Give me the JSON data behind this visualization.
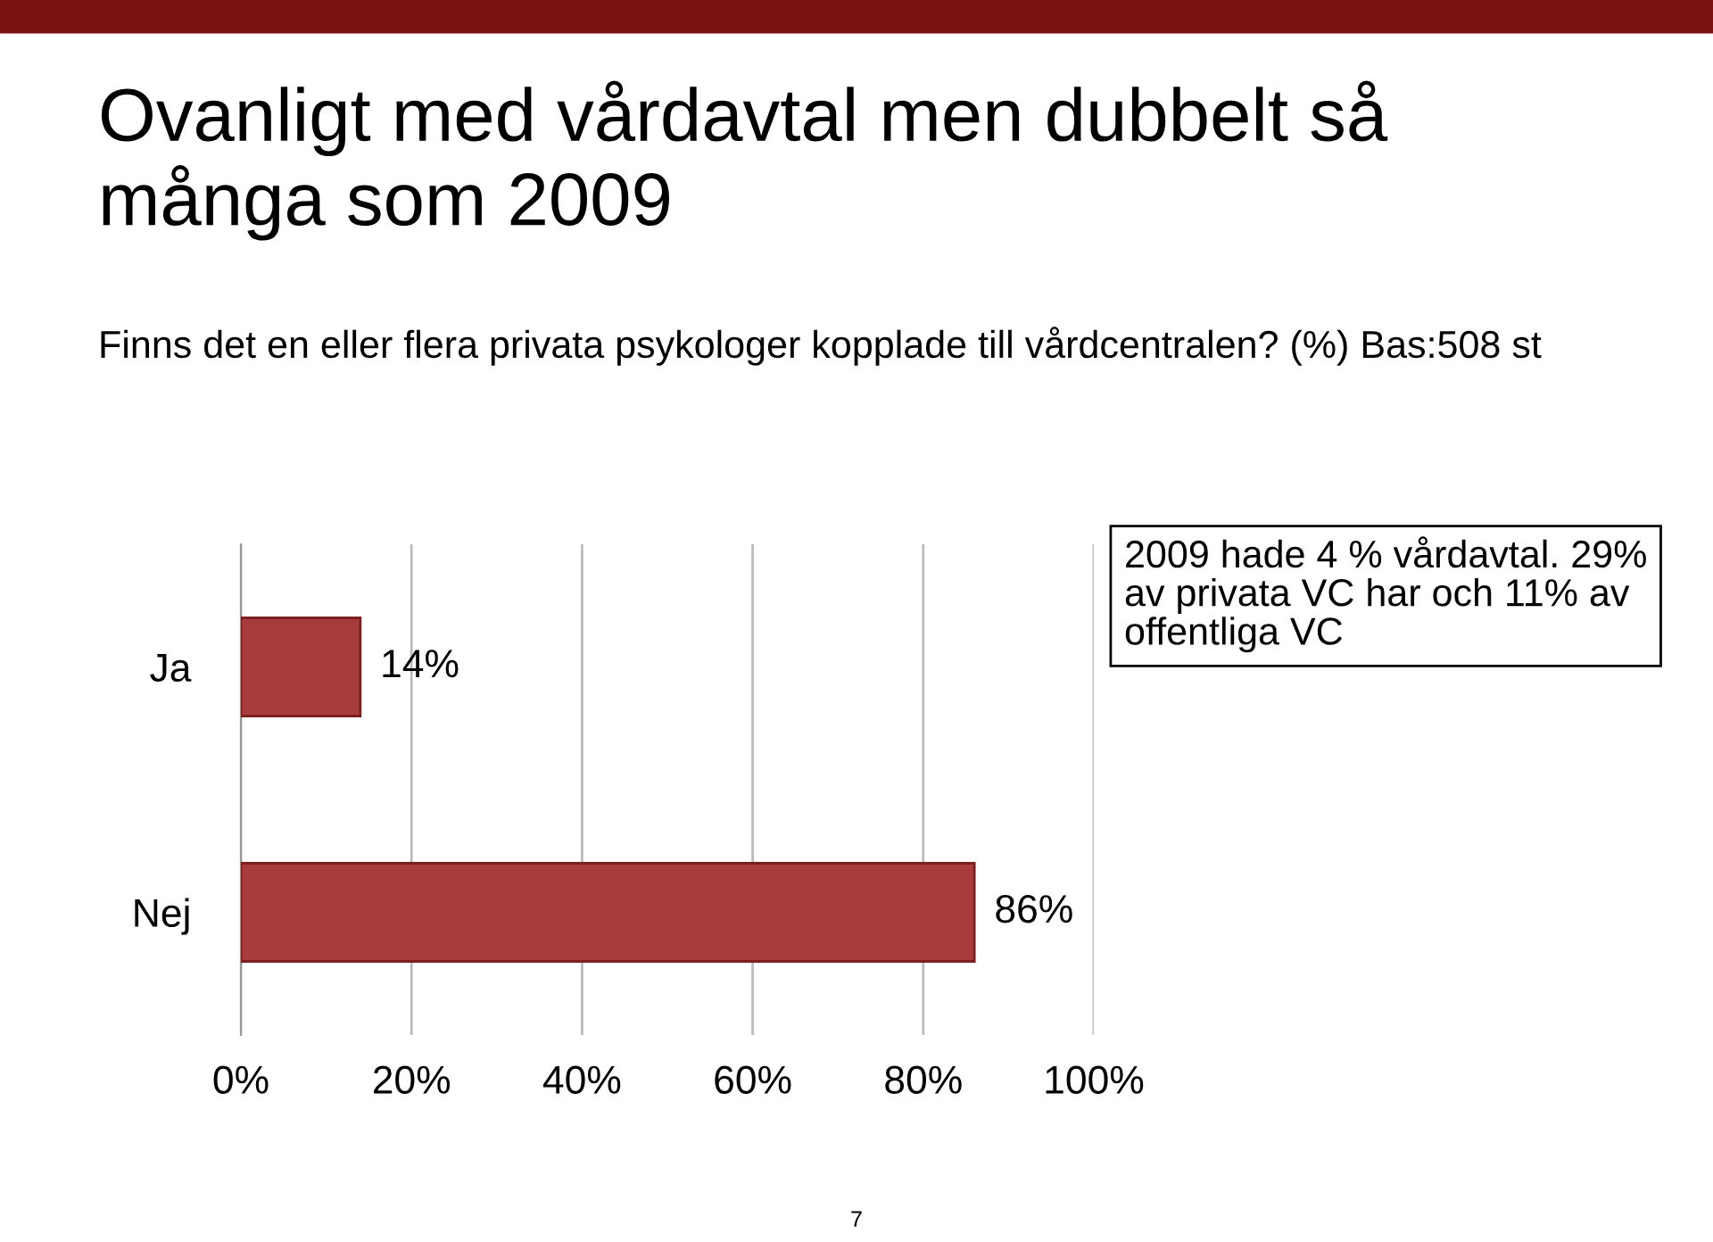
{
  "chart_data": {
    "type": "bar",
    "orientation": "horizontal",
    "title": "Ovanligt med vårdavtal men dubbelt så\nmånga som 2009",
    "subtitle": "Finns det en eller flera privata psykologer kopplade till vårdcentralen? (%) Bas:508 st",
    "categories": [
      "Ja",
      "Nej"
    ],
    "values": [
      14,
      86
    ],
    "value_labels": [
      "14%",
      "86%"
    ],
    "color": "#a83c3c",
    "xlim": [
      0,
      100
    ],
    "xticks": [
      {
        "value": 0,
        "label": "0%"
      },
      {
        "value": 20,
        "label": "20%"
      },
      {
        "value": 40,
        "label": "40%"
      },
      {
        "value": 60,
        "label": "60%"
      },
      {
        "value": 80,
        "label": "80%"
      },
      {
        "value": 100,
        "label": "100%"
      }
    ],
    "grid": "x",
    "legend": false,
    "annotations": [
      "2009 hade 4 % vårdavtal. 29%\nav privata VC har och 11% av\noffentliga VC",
      "7"
    ]
  }
}
